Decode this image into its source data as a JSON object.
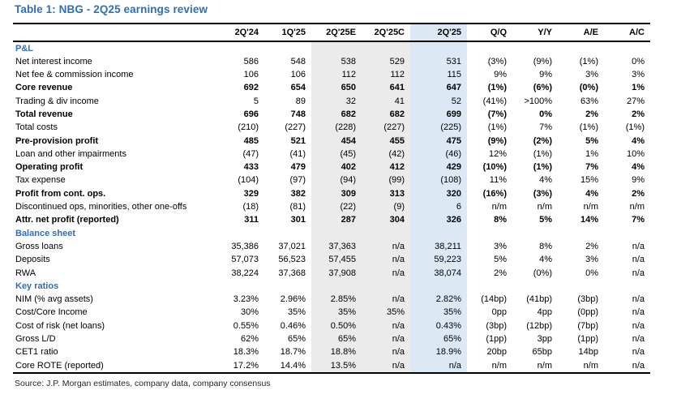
{
  "page": {
    "title": "Table 1: NBG - 2Q25 earnings review",
    "source": "Source: J.P. Morgan estimates, company data, company consensus"
  },
  "colors": {
    "accent_blue": "#2f6eb6",
    "gray_column_bg": "#ebebeb",
    "blue_column_bg": "#dce9f5"
  },
  "table": {
    "columns": [
      "",
      "2Q'24",
      "1Q'25",
      "2Q'25E",
      "2Q'25C",
      "2Q'25",
      "Q/Q",
      "Y/Y",
      "A/E",
      "A/C"
    ],
    "rows": [
      {
        "type": "section",
        "label": "P&L"
      },
      {
        "type": "data",
        "bold": false,
        "label": "Net interest income",
        "values": [
          "586",
          "548",
          "538",
          "529",
          "531",
          "(3%)",
          "(9%)",
          "(1%)",
          "0%"
        ]
      },
      {
        "type": "data",
        "bold": false,
        "label": "Net fee & commission income",
        "values": [
          "106",
          "106",
          "112",
          "112",
          "115",
          "9%",
          "9%",
          "3%",
          "3%"
        ]
      },
      {
        "type": "data",
        "bold": true,
        "label": "Core revenue",
        "values": [
          "692",
          "654",
          "650",
          "641",
          "647",
          "(1%)",
          "(6%)",
          "(0%)",
          "1%"
        ]
      },
      {
        "type": "data",
        "bold": false,
        "label": "Trading & div income",
        "values": [
          "5",
          "89",
          "32",
          "41",
          "52",
          "(41%)",
          ">100%",
          "63%",
          "27%"
        ]
      },
      {
        "type": "data",
        "bold": true,
        "label": "Total revenue",
        "values": [
          "696",
          "748",
          "682",
          "682",
          "699",
          "(7%)",
          "0%",
          "2%",
          "2%"
        ]
      },
      {
        "type": "data",
        "bold": false,
        "label": "Total costs",
        "values": [
          "(210)",
          "(227)",
          "(228)",
          "(227)",
          "(225)",
          "(1%)",
          "7%",
          "(1%)",
          "(1%)"
        ]
      },
      {
        "type": "data",
        "bold": true,
        "label": "Pre-provision profit",
        "values": [
          "485",
          "521",
          "454",
          "455",
          "475",
          "(9%)",
          "(2%)",
          "5%",
          "4%"
        ]
      },
      {
        "type": "data",
        "bold": false,
        "label": "Loan and other impairments",
        "values": [
          "(47)",
          "(41)",
          "(45)",
          "(42)",
          "(46)",
          "12%",
          "(1%)",
          "1%",
          "10%"
        ]
      },
      {
        "type": "data",
        "bold": true,
        "label": "Operating profit",
        "values": [
          "433",
          "479",
          "402",
          "412",
          "429",
          "(10%)",
          "(1%)",
          "7%",
          "4%"
        ]
      },
      {
        "type": "data",
        "bold": false,
        "label": "Tax expense",
        "values": [
          "(104)",
          "(97)",
          "(94)",
          "(99)",
          "(108)",
          "11%",
          "4%",
          "15%",
          "9%"
        ]
      },
      {
        "type": "data",
        "bold": true,
        "label": "Profit from cont. ops.",
        "values": [
          "329",
          "382",
          "309",
          "313",
          "320",
          "(16%)",
          "(3%)",
          "4%",
          "2%"
        ]
      },
      {
        "type": "data",
        "bold": false,
        "label": "Discontinued ops, minorities, other one-offs",
        "values": [
          "(18)",
          "(81)",
          "(22)",
          "(9)",
          "6",
          "n/m",
          "n/m",
          "n/m",
          "n/m"
        ]
      },
      {
        "type": "data",
        "bold": true,
        "label": "Attr. net profit (reported)",
        "values": [
          "311",
          "301",
          "287",
          "304",
          "326",
          "8%",
          "5%",
          "14%",
          "7%"
        ]
      },
      {
        "type": "section",
        "label": "Balance sheet"
      },
      {
        "type": "data",
        "bold": false,
        "label": "Gross loans",
        "values": [
          "35,386",
          "37,021",
          "37,363",
          "n/a",
          "38,211",
          "3%",
          "8%",
          "2%",
          "n/a"
        ]
      },
      {
        "type": "data",
        "bold": false,
        "label": "Deposits",
        "values": [
          "57,073",
          "56,523",
          "57,455",
          "n/a",
          "59,223",
          "5%",
          "4%",
          "3%",
          "n/a"
        ]
      },
      {
        "type": "data",
        "bold": false,
        "label": "RWA",
        "values": [
          "38,224",
          "37,368",
          "37,908",
          "n/a",
          "38,074",
          "2%",
          "(0%)",
          "0%",
          "n/a"
        ]
      },
      {
        "type": "section",
        "label": "Key ratios"
      },
      {
        "type": "data",
        "bold": false,
        "label": "NIM (% avg assets)",
        "values": [
          "3.23%",
          "2.96%",
          "2.85%",
          "n/a",
          "2.82%",
          "(14bp)",
          "(41bp)",
          "(3bp)",
          "n/a"
        ]
      },
      {
        "type": "data",
        "bold": false,
        "label": "Cost/Core Income",
        "values": [
          "30%",
          "35%",
          "35%",
          "35%",
          "35%",
          "0pp",
          "4pp",
          "(0pp)",
          "n/a"
        ]
      },
      {
        "type": "data",
        "bold": false,
        "label": "Cost of risk (net loans)",
        "values": [
          "0.55%",
          "0.46%",
          "0.50%",
          "n/a",
          "0.43%",
          "(3bp)",
          "(12bp)",
          "(7bp)",
          "n/a"
        ]
      },
      {
        "type": "data",
        "bold": false,
        "label": "Gross L/D",
        "values": [
          "62%",
          "65%",
          "65%",
          "n/a",
          "65%",
          "(1pp)",
          "3pp",
          "(1pp)",
          "n/a"
        ]
      },
      {
        "type": "data",
        "bold": false,
        "label": "CET1 ratio",
        "values": [
          "18.3%",
          "18.7%",
          "18.8%",
          "n/a",
          "18.9%",
          "20bp",
          "65bp",
          "14bp",
          "n/a"
        ]
      },
      {
        "type": "data",
        "bold": false,
        "label": "Core ROTE (reported)",
        "values": [
          "17.2%",
          "14.4%",
          "13.5%",
          "n/a",
          "n/a",
          "n/m",
          "n/m",
          "n/m",
          "n/a"
        ]
      }
    ]
  }
}
